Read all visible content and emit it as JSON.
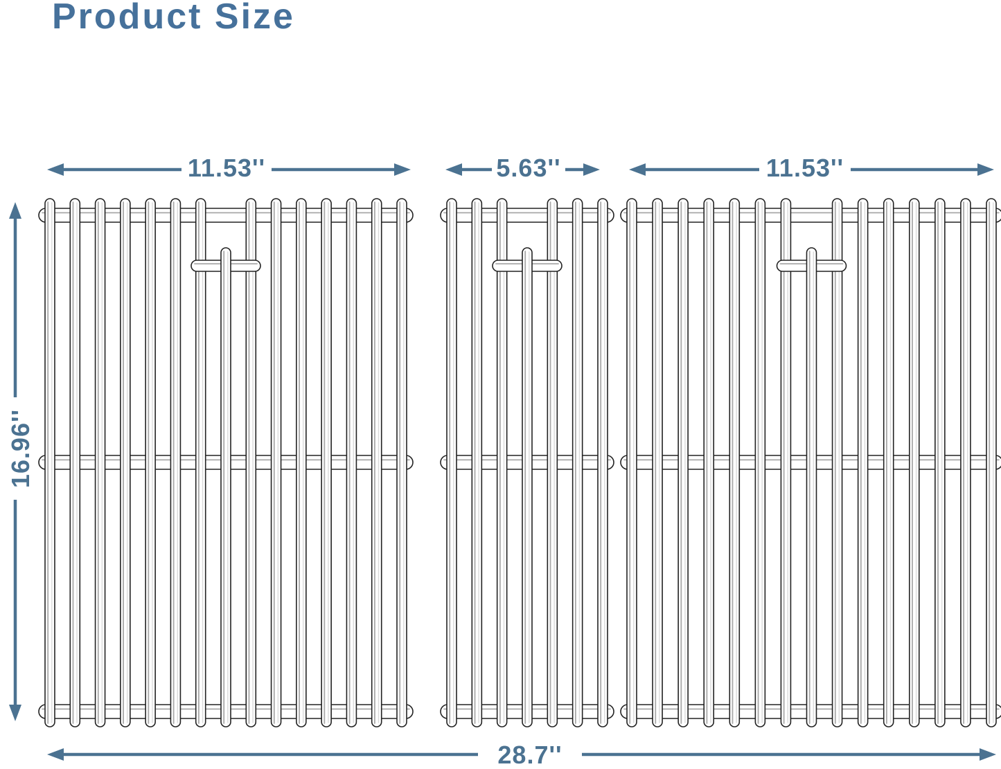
{
  "title": "Product Size",
  "colors": {
    "dimension": "#4b7291",
    "title": "#46719b",
    "outline": "#222222",
    "shade": "#a8a8a8",
    "shade_light": "#dadada",
    "fill": "#ffffff"
  },
  "diagram": {
    "panels": [
      {
        "id": "left",
        "width_label": "11.53''",
        "rod_count": 15,
        "short_rod_index": 7
      },
      {
        "id": "middle",
        "width_label": "5.63''",
        "rod_count": 7,
        "short_rod_index": 3
      },
      {
        "id": "right",
        "width_label": "11.53''",
        "rod_count": 15,
        "short_rod_index": 7
      }
    ],
    "height_label": "16.96''",
    "total_width_label": "28.7''"
  }
}
